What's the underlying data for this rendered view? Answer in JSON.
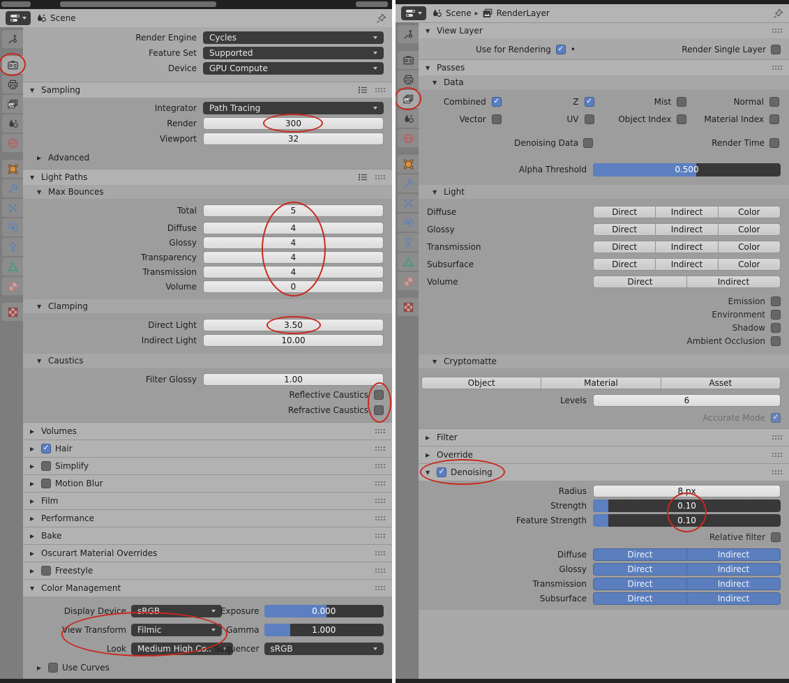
{
  "annotation_color": "#c8281e",
  "left": {
    "header": {
      "editor_icon": "properties-editor-icon",
      "scene_label": "Scene",
      "pin_icon": "pin-icon"
    },
    "tabs": [
      "tool-icon",
      "render-properties-icon",
      "output-properties-icon",
      "view-layer-properties-icon",
      "scene-properties-icon",
      "world-properties-icon",
      "object-properties-icon",
      "modifiers-icon",
      "particles-icon",
      "physics-icon",
      "constraints-icon",
      "object-data-icon",
      "material-icon",
      "texture-icon"
    ],
    "engine": {
      "label": "Render Engine",
      "value": "Cycles"
    },
    "feature_set": {
      "label": "Feature Set",
      "value": "Supported"
    },
    "device": {
      "label": "Device",
      "value": "GPU Compute"
    },
    "sampling": {
      "title": "Sampling",
      "integrator": {
        "label": "Integrator",
        "value": "Path Tracing"
      },
      "render": {
        "label": "Render",
        "value": "300"
      },
      "viewport": {
        "label": "Viewport",
        "value": "32"
      },
      "advanced_label": "Advanced"
    },
    "light_paths": {
      "title": "Light Paths",
      "max_bounces": {
        "title": "Max Bounces",
        "total": {
          "label": "Total",
          "value": "5"
        },
        "rows": [
          {
            "label": "Diffuse",
            "value": "4"
          },
          {
            "label": "Glossy",
            "value": "4"
          },
          {
            "label": "Transparency",
            "value": "4"
          },
          {
            "label": "Transmission",
            "value": "4"
          },
          {
            "label": "Volume",
            "value": "0"
          }
        ]
      },
      "clamping": {
        "title": "Clamping",
        "direct_light": {
          "label": "Direct Light",
          "value": "3.50"
        },
        "indirect_light": {
          "label": "Indirect Light",
          "value": "10.00"
        }
      },
      "caustics": {
        "title": "Caustics",
        "filter_glossy": {
          "label": "Filter Glossy",
          "value": "1.00"
        },
        "reflective": {
          "label": "Reflective Caustics",
          "on": false
        },
        "refractive": {
          "label": "Refractive Caustics",
          "on": false
        }
      }
    },
    "collapsed": [
      {
        "label": "Volumes"
      },
      {
        "label": "Hair",
        "on": true
      },
      {
        "label": "Simplify",
        "on": false
      },
      {
        "label": "Motion Blur",
        "on": false
      },
      {
        "label": "Film"
      },
      {
        "label": "Performance"
      },
      {
        "label": "Bake"
      },
      {
        "label": "Oscurart Material Overrides"
      },
      {
        "label": "Freestyle",
        "on": false
      }
    ],
    "color_management": {
      "title": "Color Management",
      "display_device": {
        "label": "Display Device",
        "value": "sRGB"
      },
      "view_transform": {
        "label": "View Transform",
        "value": "Filmic"
      },
      "look": {
        "label": "Look",
        "value": "Medium High Co.."
      },
      "exposure": {
        "label": "Exposure",
        "value": "0.000",
        "fill": 52
      },
      "gamma": {
        "label": "Gamma",
        "value": "1.000",
        "fill": 22
      },
      "sequencer": {
        "label": "Sequencer",
        "value": "sRGB"
      },
      "use_curves": {
        "label": "Use Curves",
        "on": false
      }
    }
  },
  "right": {
    "header": {
      "scene_label": "Scene",
      "layer_label": "RenderLayer"
    },
    "view_layer": {
      "title": "View Layer",
      "use_for_rendering": {
        "label": "Use for Rendering",
        "on": true,
        "dot": "•"
      },
      "render_single_layer": {
        "label": "Render Single Layer",
        "on": false
      }
    },
    "passes": {
      "title": "Passes",
      "data": {
        "title": "Data",
        "checks": [
          {
            "label": "Combined",
            "on": true
          },
          {
            "label": "Z",
            "on": true
          },
          {
            "label": "Mist",
            "on": false
          },
          {
            "label": "Normal",
            "on": false
          },
          {
            "label": "Vector",
            "on": false
          },
          {
            "label": "UV",
            "on": false
          },
          {
            "label": "Object Index",
            "on": false
          },
          {
            "label": "Material Index",
            "on": false
          }
        ],
        "denoising_data": {
          "label": "Denoising Data",
          "on": false
        },
        "render_time": {
          "label": "Render Time",
          "on": false
        },
        "alpha_threshold": {
          "label": "Alpha Threshold",
          "value": "0.500",
          "fill": 55
        }
      },
      "light": {
        "title": "Light",
        "button_labels": [
          "Direct",
          "Indirect",
          "Color"
        ],
        "rows": [
          {
            "label": "Diffuse"
          },
          {
            "label": "Glossy"
          },
          {
            "label": "Transmission"
          },
          {
            "label": "Subsurface"
          }
        ],
        "volume": {
          "label": "Volume",
          "buttons": [
            "Direct",
            "Indirect"
          ]
        },
        "checks": [
          {
            "label": "Emission",
            "on": false
          },
          {
            "label": "Environment",
            "on": false
          },
          {
            "label": "Shadow",
            "on": false
          },
          {
            "label": "Ambient Occlusion",
            "on": false
          }
        ]
      },
      "cryptomatte": {
        "title": "Cryptomatte",
        "segments": [
          "Object",
          "Material",
          "Asset"
        ],
        "levels": {
          "label": "Levels",
          "value": "6"
        },
        "accurate_mode": {
          "label": "Accurate Mode",
          "on": true
        }
      }
    },
    "filter": {
      "title": "Filter"
    },
    "override": {
      "title": "Override"
    },
    "denoising": {
      "title": "Denoising",
      "on": true,
      "radius": {
        "label": "Radius",
        "value": "8 px"
      },
      "strength": {
        "label": "Strength",
        "value": "0.10",
        "fill": 8
      },
      "feature_strength": {
        "label": "Feature Strength",
        "value": "0.10",
        "fill": 8
      },
      "relative_filter": {
        "label": "Relative filter",
        "on": false
      },
      "button_labels": [
        "Direct",
        "Indirect"
      ],
      "rows": [
        {
          "label": "Diffuse"
        },
        {
          "label": "Glossy"
        },
        {
          "label": "Transmission"
        },
        {
          "label": "Subsurface"
        }
      ]
    }
  }
}
